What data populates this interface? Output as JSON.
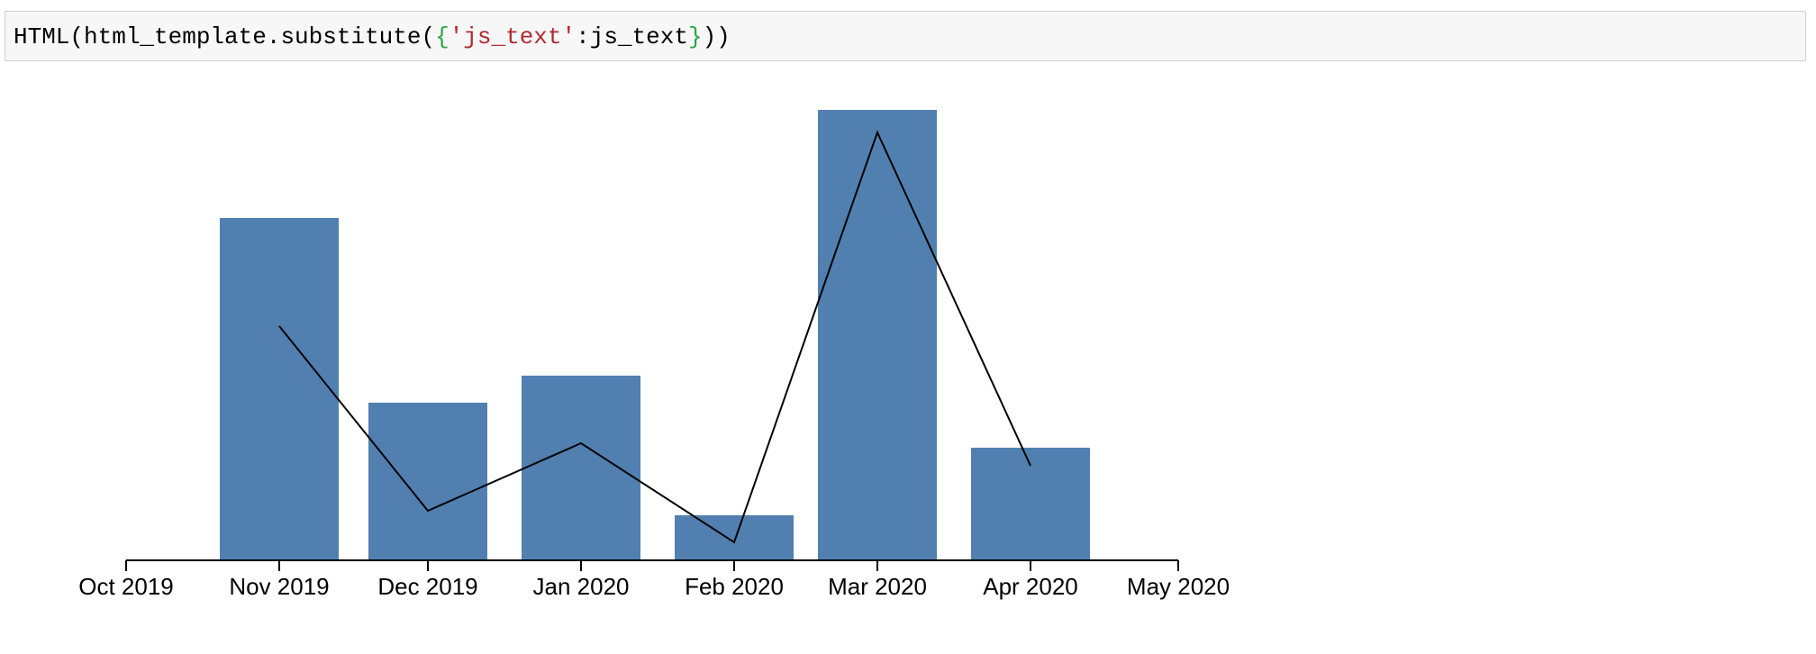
{
  "code_cell": {
    "prefix": "HTML(html_template.substitute(",
    "brace_open": "{",
    "string_key": "'js_text'",
    "middle": ":js_text",
    "brace_close": "}",
    "suffix": "))"
  },
  "chart_data": {
    "type": "bar",
    "categories": [
      "Nov 2019",
      "Dec 2019",
      "Jan 2020",
      "Feb 2020",
      "Mar 2020",
      "Apr 2020"
    ],
    "series": [
      {
        "type": "bar",
        "values": [
          76,
          35,
          41,
          10,
          100,
          25
        ]
      },
      {
        "type": "line",
        "values": [
          52,
          11,
          26,
          4,
          95,
          21
        ]
      }
    ],
    "x_ticks": [
      "Oct 2019",
      "Nov 2019",
      "Dec 2019",
      "Jan 2020",
      "Feb 2020",
      "Mar 2020",
      "Apr 2020",
      "May 2020"
    ],
    "x_domain": [
      "2019-10-01",
      "2020-05-01"
    ],
    "ylim": [
      0,
      100
    ],
    "title": "",
    "xlabel": "",
    "ylabel": "",
    "grid": false,
    "colors": {
      "bar": "#5180b0",
      "line": "#000000",
      "axis": "#000000"
    }
  }
}
